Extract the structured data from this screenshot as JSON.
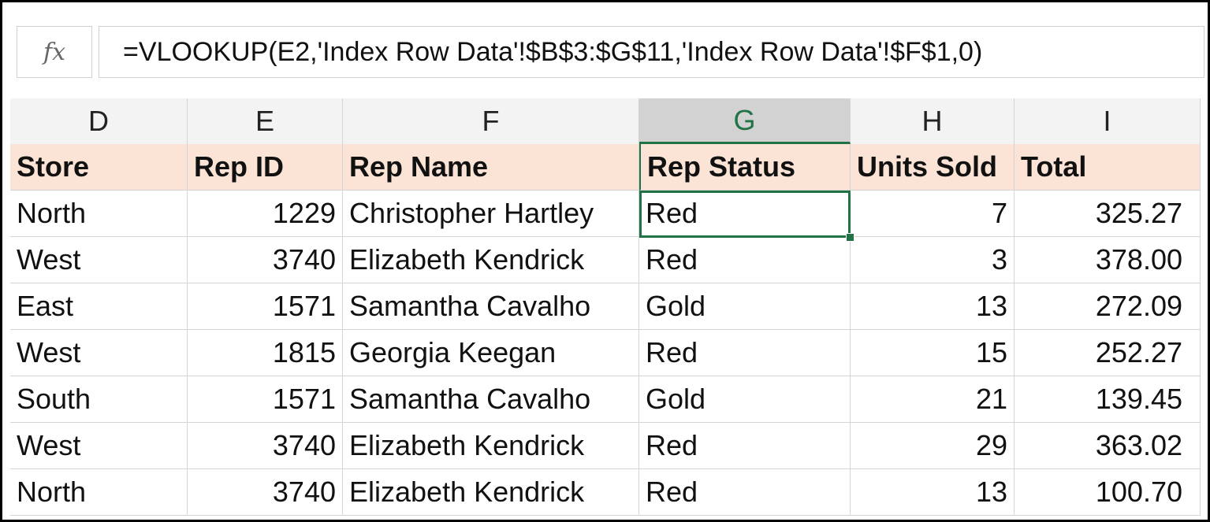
{
  "formula_bar": {
    "fx_label": "fx",
    "formula": "=VLOOKUP(E2,'Index Row Data'!$B$3:$G$11,'Index Row Data'!$F$1,0)"
  },
  "columns": [
    "D",
    "E",
    "F",
    "G",
    "H",
    "I"
  ],
  "selected_column": "G",
  "table": {
    "headers": [
      "Store",
      "Rep ID",
      "Rep Name",
      "Rep Status",
      "Units Sold",
      "Total"
    ],
    "rows": [
      [
        "North",
        "1229",
        "Christopher Hartley",
        "Red",
        "7",
        "325.27"
      ],
      [
        "West",
        "3740",
        "Elizabeth Kendrick",
        "Red",
        "3",
        "378.00"
      ],
      [
        "East",
        "1571",
        "Samantha Cavalho",
        "Gold",
        "13",
        "272.09"
      ],
      [
        "West",
        "1815",
        "Georgia Keegan",
        "Red",
        "15",
        "252.27"
      ],
      [
        "South",
        "1571",
        "Samantha Cavalho",
        "Gold",
        "21",
        "139.45"
      ],
      [
        "West",
        "3740",
        "Elizabeth Kendrick",
        "Red",
        "29",
        "363.02"
      ],
      [
        "North",
        "3740",
        "Elizabeth Kendrick",
        "Red",
        "13",
        "100.70"
      ]
    ]
  },
  "colors": {
    "header_fill": "#fbe4d5",
    "selection_green": "#217346"
  }
}
